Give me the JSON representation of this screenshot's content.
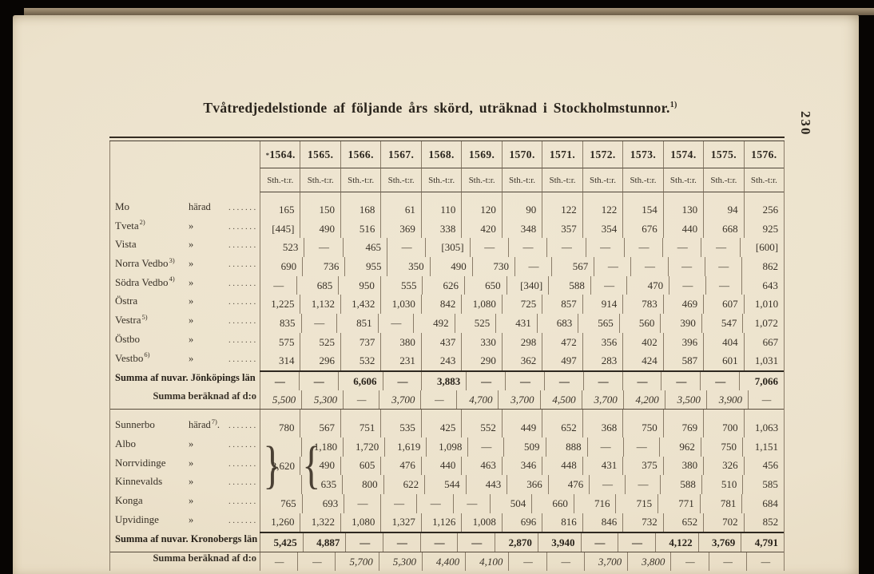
{
  "page": {
    "number": "230"
  },
  "title": {
    "text": "Tvåtredjedelstionde af följande års skörd, uträknad i Stockholmstunnor.",
    "footnote_mark": "1)"
  },
  "table": {
    "corner_mark": "*",
    "years": [
      "1564.",
      "1565.",
      "1566.",
      "1567.",
      "1568.",
      "1569.",
      "1570.",
      "1571.",
      "1572.",
      "1573.",
      "1574.",
      "1575.",
      "1576."
    ],
    "unit_header": "Sth.-t:r.",
    "brace_value": "2,620",
    "rows": [
      {
        "kind": "data",
        "name": "Mo",
        "name_sup": "",
        "unit": "härad",
        "unit_sup": "",
        "unit_after": "",
        "values": [
          "165",
          "150",
          "168",
          "61",
          "110",
          "120",
          "90",
          "122",
          "122",
          "154",
          "130",
          "94",
          "256"
        ]
      },
      {
        "kind": "data",
        "name": "Tveta",
        "name_sup": "2)",
        "unit": "»",
        "unit_sup": "",
        "unit_after": "",
        "values": [
          "[445]",
          "490",
          "516",
          "369",
          "338",
          "420",
          "348",
          "357",
          "354",
          "676",
          "440",
          "668",
          "925"
        ]
      },
      {
        "kind": "data",
        "name": "Vista",
        "name_sup": "",
        "unit": "»",
        "unit_sup": "",
        "unit_after": "",
        "values": [
          "523",
          "—",
          "465",
          "—",
          "[305]",
          "—",
          "—",
          "—",
          "—",
          "—",
          "—",
          "—",
          "[600]"
        ]
      },
      {
        "kind": "data",
        "name": "Norra Vedbo",
        "name_sup": "3)",
        "unit": "»",
        "unit_sup": "",
        "unit_after": "",
        "values": [
          "690",
          "736",
          "955",
          "350",
          "490",
          "730",
          "—",
          "567",
          "—",
          "—",
          "—",
          "—",
          "862"
        ]
      },
      {
        "kind": "data",
        "name": "Södra Vedbo",
        "name_sup": "4)",
        "unit": "»",
        "unit_sup": "",
        "unit_after": "",
        "values": [
          "—",
          "685",
          "950",
          "555",
          "626",
          "650",
          "[340]",
          "588",
          "—",
          "470",
          "—",
          "—",
          "643"
        ]
      },
      {
        "kind": "data",
        "name": "Östra",
        "name_sup": "",
        "unit": "»",
        "unit_sup": "",
        "unit_after": "",
        "values": [
          "1,225",
          "1,132",
          "1,432",
          "1,030",
          "842",
          "1,080",
          "725",
          "857",
          "914",
          "783",
          "469",
          "607",
          "1,010"
        ]
      },
      {
        "kind": "data",
        "name": "Vestra",
        "name_sup": "5)",
        "unit": "»",
        "unit_sup": "",
        "unit_after": "",
        "values": [
          "835",
          "—",
          "851",
          "—",
          "492",
          "525",
          "431",
          "683",
          "565",
          "560",
          "390",
          "547",
          "1,072"
        ]
      },
      {
        "kind": "data",
        "name": "Östbo",
        "name_sup": "",
        "unit": "»",
        "unit_sup": "",
        "unit_after": "",
        "values": [
          "575",
          "525",
          "737",
          "380",
          "437",
          "330",
          "298",
          "472",
          "356",
          "402",
          "396",
          "404",
          "667"
        ]
      },
      {
        "kind": "data",
        "name": "Vestbo",
        "name_sup": "6)",
        "unit": "»",
        "unit_sup": "",
        "unit_after": "",
        "values": [
          "314",
          "296",
          "532",
          "231",
          "243",
          "290",
          "362",
          "497",
          "283",
          "424",
          "587",
          "601",
          "1,031"
        ]
      },
      {
        "kind": "sum",
        "label": "Summa af nuvar. Jönköpings län",
        "values": [
          "—",
          "—",
          "6,606",
          "—",
          "3,883",
          "—",
          "—",
          "—",
          "—",
          "—",
          "—",
          "—",
          "7,066"
        ]
      },
      {
        "kind": "est",
        "label": "Summa beräknad af d:o",
        "values": [
          "5,500",
          "5,300",
          "—",
          "3,700",
          "—",
          "4,700",
          "3,700",
          "4,500",
          "3,700",
          "4,200",
          "3,500",
          "3,900",
          "—"
        ]
      },
      {
        "kind": "data",
        "name": "Sunnerbo",
        "name_sup": "",
        "unit": "härad",
        "unit_sup": "7)",
        "unit_after": ".",
        "values": [
          "780",
          "567",
          "751",
          "535",
          "425",
          "552",
          "449",
          "652",
          "368",
          "750",
          "769",
          "700",
          "1,063"
        ]
      },
      {
        "kind": "data",
        "name": "Albo",
        "name_sup": "",
        "unit": "»",
        "unit_sup": "",
        "unit_after": "",
        "values": [
          "",
          "1,180",
          "1,720",
          "1,619",
          "1,098",
          "—",
          "509",
          "888",
          "—",
          "—",
          "962",
          "750",
          "1,151"
        ]
      },
      {
        "kind": "data",
        "name": "Norrvidinge",
        "name_sup": "",
        "unit": "»",
        "unit_sup": "",
        "unit_after": "",
        "values": [
          "",
          "490",
          "605",
          "476",
          "440",
          "463",
          "346",
          "448",
          "431",
          "375",
          "380",
          "326",
          "456"
        ]
      },
      {
        "kind": "data",
        "name": "Kinnevalds",
        "name_sup": "",
        "unit": "»",
        "unit_sup": "",
        "unit_after": "",
        "values": [
          "",
          "635",
          "800",
          "622",
          "544",
          "443",
          "366",
          "476",
          "—",
          "—",
          "588",
          "510",
          "585"
        ]
      },
      {
        "kind": "data",
        "name": "Konga",
        "name_sup": "",
        "unit": "»",
        "unit_sup": "",
        "unit_after": "",
        "values": [
          "765",
          "693",
          "—",
          "—",
          "—",
          "—",
          "504",
          "660",
          "716",
          "715",
          "771",
          "781",
          "684"
        ]
      },
      {
        "kind": "data",
        "name": "Upvidinge",
        "name_sup": "",
        "unit": "»",
        "unit_sup": "",
        "unit_after": "",
        "values": [
          "1,260",
          "1,322",
          "1,080",
          "1,327",
          "1,126",
          "1,008",
          "696",
          "816",
          "846",
          "732",
          "652",
          "702",
          "852"
        ]
      },
      {
        "kind": "sum",
        "label": "Summa af nuvar. Kronobergs län",
        "values": [
          "5,425",
          "4,887",
          "—",
          "—",
          "—",
          "—",
          "2,870",
          "3,940",
          "—",
          "—",
          "4,122",
          "3,769",
          "4,791"
        ]
      },
      {
        "kind": "est",
        "label": "Summa beräknad af d:o",
        "values": [
          "—",
          "—",
          "5,700",
          "5,300",
          "4,400",
          "4,100",
          "—",
          "—",
          "3,700",
          "3,800",
          "—",
          "—",
          "—"
        ]
      }
    ]
  }
}
